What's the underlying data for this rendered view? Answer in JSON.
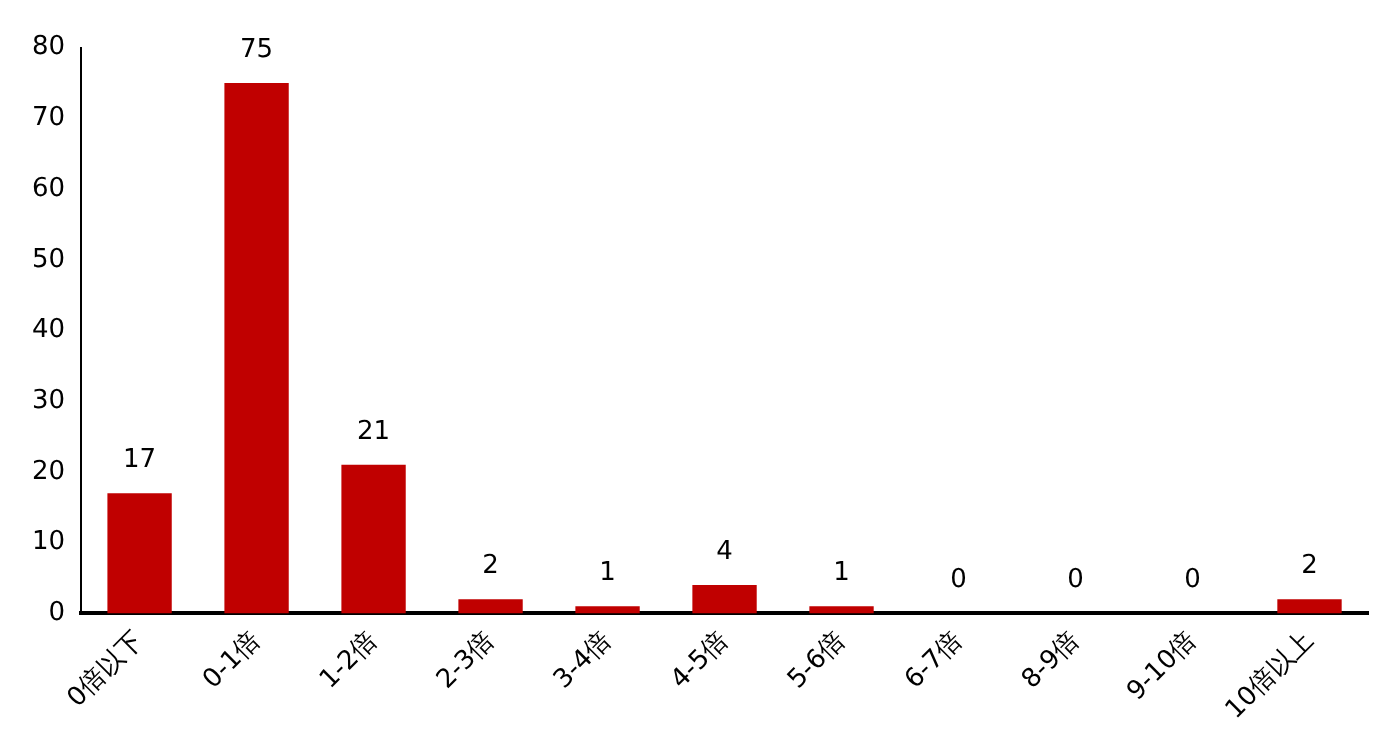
{
  "chart_data": {
    "type": "bar",
    "categories": [
      "0倍以下",
      "0-1倍",
      "1-2倍",
      "2-3倍",
      "3-4倍",
      "4-5倍",
      "5-6倍",
      "6-7倍",
      "8-9倍",
      "9-10倍",
      "10倍以上"
    ],
    "values": [
      17,
      75,
      21,
      2,
      1,
      4,
      1,
      0,
      0,
      0,
      2
    ],
    "color": "#c00000",
    "ylim": [
      0,
      80
    ],
    "yticks": [
      0,
      10,
      20,
      30,
      40,
      50,
      60,
      70,
      80
    ],
    "grid": false,
    "legend": false,
    "data_labels": true
  }
}
